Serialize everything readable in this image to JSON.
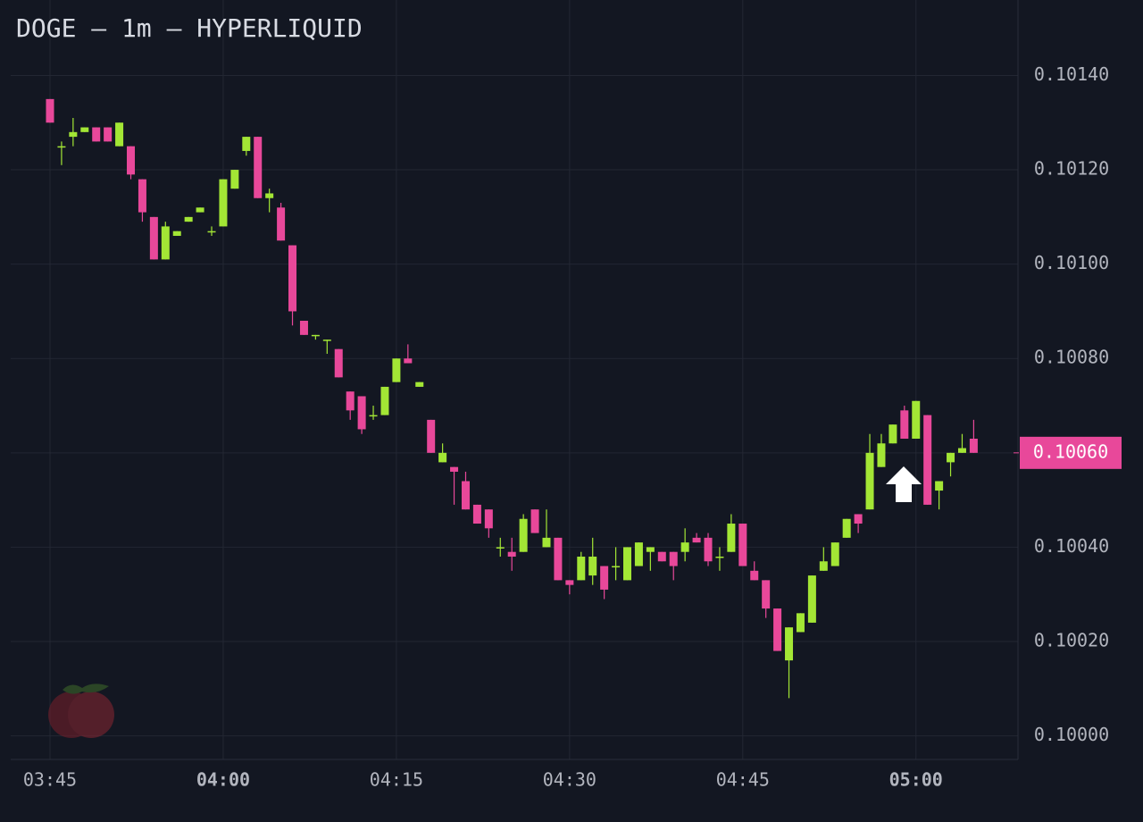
{
  "chart_data": {
    "type": "candlestick",
    "title": "DOGE — 1m — HYPERLIQUID",
    "x": [
      "03:45",
      "03:46",
      "03:47",
      "03:48",
      "03:49",
      "03:50",
      "03:51",
      "03:52",
      "03:53",
      "03:54",
      "03:55",
      "03:56",
      "03:57",
      "03:58",
      "03:59",
      "04:00",
      "04:01",
      "04:02",
      "04:03",
      "04:04",
      "04:05",
      "04:06",
      "04:07",
      "04:08",
      "04:09",
      "04:10",
      "04:11",
      "04:12",
      "04:13",
      "04:14",
      "04:15",
      "04:16",
      "04:17",
      "04:18",
      "04:19",
      "04:20",
      "04:21",
      "04:22",
      "04:23",
      "04:24",
      "04:25",
      "04:26",
      "04:27",
      "04:28",
      "04:29",
      "04:30",
      "04:31",
      "04:32",
      "04:33",
      "04:34",
      "04:35",
      "04:36",
      "04:37",
      "04:38",
      "04:39",
      "04:40",
      "04:41",
      "04:42",
      "04:43",
      "04:44",
      "04:45",
      "04:46",
      "04:47",
      "04:48",
      "04:49",
      "04:50",
      "04:51",
      "04:52",
      "04:53",
      "04:54",
      "04:55",
      "04:56",
      "04:57",
      "04:58",
      "04:59",
      "05:00",
      "05:01",
      "05:02",
      "05:03",
      "05:04",
      "05:05"
    ],
    "open": [
      0.10135,
      0.10125,
      0.10127,
      0.10128,
      0.10129,
      0.10129,
      0.10125,
      0.10125,
      0.10118,
      0.1011,
      0.10101,
      0.10106,
      0.10109,
      0.10111,
      0.10107,
      0.10108,
      0.10116,
      0.10124,
      0.10127,
      0.10114,
      0.10112,
      0.10104,
      0.10088,
      0.10085,
      0.10084,
      0.10082,
      0.10073,
      0.10072,
      0.10068,
      0.10068,
      0.10075,
      0.1008,
      0.10074,
      0.10067,
      0.10058,
      0.10057,
      0.10054,
      0.10049,
      0.10048,
      0.1004,
      0.10039,
      0.10039,
      0.10048,
      0.1004,
      0.10042,
      0.10033,
      0.10033,
      0.10034,
      0.10036,
      0.10036,
      0.10033,
      0.10036,
      0.10039,
      0.10039,
      0.10039,
      0.10039,
      0.10042,
      0.10042,
      0.10038,
      0.10039,
      0.10045,
      0.10035,
      0.10033,
      0.10027,
      0.10016,
      0.10022,
      0.10024,
      0.10035,
      0.10036,
      0.10042,
      0.10047,
      0.10048,
      0.10057,
      0.10062,
      0.10069,
      0.10063,
      0.10068,
      0.10052,
      0.10058,
      0.1006,
      0.10063
    ],
    "high": [
      0.10135,
      0.10126,
      0.10131,
      0.10129,
      0.10129,
      0.10129,
      0.1013,
      0.10125,
      0.10118,
      0.1011,
      0.10109,
      0.10107,
      0.1011,
      0.10112,
      0.10108,
      0.10118,
      0.1012,
      0.10127,
      0.10127,
      0.10116,
      0.10113,
      0.10104,
      0.10088,
      0.10085,
      0.10084,
      0.10082,
      0.10073,
      0.10072,
      0.1007,
      0.10074,
      0.1008,
      0.10083,
      0.10075,
      0.10067,
      0.10062,
      0.10057,
      0.10056,
      0.10049,
      0.10048,
      0.10042,
      0.10042,
      0.10047,
      0.10048,
      0.10048,
      0.10042,
      0.10033,
      0.10039,
      0.10042,
      0.10036,
      0.1004,
      0.1004,
      0.10041,
      0.1004,
      0.10039,
      0.10039,
      0.10044,
      0.10043,
      0.10043,
      0.1004,
      0.10047,
      0.10045,
      0.10037,
      0.10033,
      0.10027,
      0.10023,
      0.10026,
      0.10034,
      0.1004,
      0.10041,
      0.10046,
      0.10047,
      0.10064,
      0.10064,
      0.10066,
      0.1007,
      0.10071,
      0.10068,
      0.10054,
      0.1006,
      0.10064,
      0.10067
    ],
    "low": [
      0.1013,
      0.10121,
      0.10125,
      0.10128,
      0.10126,
      0.10126,
      0.10125,
      0.10118,
      0.10109,
      0.10101,
      0.10101,
      0.10106,
      0.10109,
      0.10111,
      0.10106,
      0.10108,
      0.10116,
      0.10123,
      0.10114,
      0.10111,
      0.10105,
      0.10087,
      0.10085,
      0.10084,
      0.10081,
      0.10076,
      0.10067,
      0.10064,
      0.10067,
      0.10068,
      0.10075,
      0.10079,
      0.10074,
      0.1006,
      0.10058,
      0.10049,
      0.10048,
      0.10045,
      0.10042,
      0.10038,
      0.10035,
      0.10039,
      0.10043,
      0.1004,
      0.10033,
      0.1003,
      0.10033,
      0.10032,
      0.10029,
      0.10033,
      0.10033,
      0.10036,
      0.10035,
      0.10037,
      0.10033,
      0.10037,
      0.10041,
      0.10036,
      0.10035,
      0.10039,
      0.10036,
      0.10033,
      0.10025,
      0.10018,
      0.10008,
      0.10022,
      0.10024,
      0.10035,
      0.10036,
      0.10042,
      0.10043,
      0.10048,
      0.10057,
      0.10062,
      0.10063,
      0.10063,
      0.10049,
      0.10048,
      0.10055,
      0.1006,
      0.1006
    ],
    "close": [
      0.1013,
      0.10125,
      0.10128,
      0.10129,
      0.10126,
      0.10126,
      0.1013,
      0.10119,
      0.10111,
      0.10101,
      0.10108,
      0.10107,
      0.1011,
      0.10112,
      0.10107,
      0.10118,
      0.1012,
      0.10127,
      0.10114,
      0.10115,
      0.10105,
      0.1009,
      0.10085,
      0.10085,
      0.10084,
      0.10076,
      0.10069,
      0.10065,
      0.10068,
      0.10074,
      0.1008,
      0.10079,
      0.10075,
      0.1006,
      0.1006,
      0.10056,
      0.10048,
      0.10045,
      0.10044,
      0.1004,
      0.10038,
      0.10046,
      0.10043,
      0.10042,
      0.10033,
      0.10032,
      0.10038,
      0.10038,
      0.10031,
      0.10036,
      0.1004,
      0.10041,
      0.1004,
      0.10037,
      0.10036,
      0.10041,
      0.10041,
      0.10037,
      0.10038,
      0.10045,
      0.10036,
      0.10033,
      0.10027,
      0.10018,
      0.10023,
      0.10026,
      0.10034,
      0.10037,
      0.10041,
      0.10046,
      0.10045,
      0.1006,
      0.10062,
      0.10066,
      0.10063,
      0.10071,
      0.10049,
      0.10054,
      0.1006,
      0.10061,
      0.1006
    ],
    "up_color": "#a3e635",
    "down_color": "#e8489a",
    "ylim": [
      0.09995,
      0.10156
    ],
    "yticks": [
      {
        "value": 0.1,
        "label": "0.10000"
      },
      {
        "value": 0.1002,
        "label": "0.10020"
      },
      {
        "value": 0.1004,
        "label": "0.10040"
      },
      {
        "value": 0.1006,
        "label": "0.10060"
      },
      {
        "value": 0.1008,
        "label": "0.10080"
      },
      {
        "value": 0.101,
        "label": "0.10100"
      },
      {
        "value": 0.1012,
        "label": "0.10120"
      },
      {
        "value": 0.1014,
        "label": "0.10140"
      }
    ],
    "xticks": [
      "03:45",
      "04:00",
      "04:15",
      "04:30",
      "04:45",
      "05:00"
    ],
    "last_price": {
      "value": 0.1006,
      "label": "0.10060"
    },
    "grid": true
  }
}
